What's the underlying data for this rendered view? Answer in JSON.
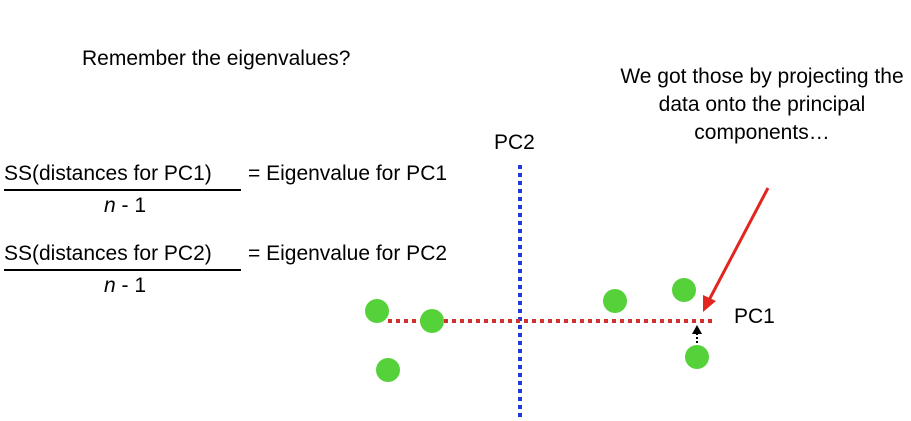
{
  "title": "Remember the eigenvalues?",
  "callout": "We got those by projecting the data onto the principal components…",
  "equations": [
    {
      "numerator": "SS(distances for PC1)",
      "rhs": "= Eigenvalue for PC1",
      "denominator_var": "n",
      "denominator_rest": " - 1"
    },
    {
      "numerator": "SS(distances for PC2)",
      "rhs": "= Eigenvalue for PC2",
      "denominator_var": "n",
      "denominator_rest": " - 1"
    }
  ],
  "axes": {
    "pc1_label": "PC1",
    "pc2_label": "PC2",
    "pc1_color": "#d32f2f",
    "pc2_color": "#1f3ad6"
  },
  "point_color": "#55d13a",
  "arrow_color": "#e0261f"
}
